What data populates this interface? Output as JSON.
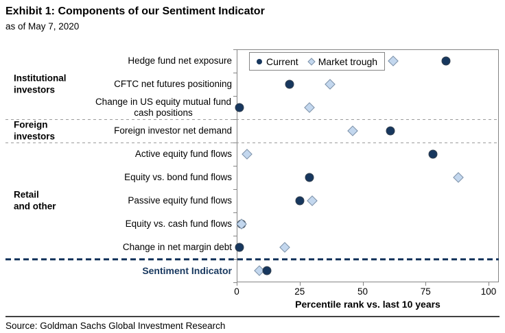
{
  "header": {
    "title": "Exhibit 1: Components of our Sentiment Indicator",
    "date": "as of May 7, 2020"
  },
  "footer": {
    "source": "Source: Goldman Sachs Global Investment Research"
  },
  "chart_data": {
    "type": "scatter",
    "title": "Exhibit 1: Components of our Sentiment Indicator",
    "subtitle": "as of May 7, 2020",
    "xlabel": "Percentile rank vs. last 10 years",
    "xlim": [
      0,
      104
    ],
    "xticks": [
      0,
      25,
      50,
      75,
      100
    ],
    "legend": [
      {
        "label": "Current",
        "marker": "circle"
      },
      {
        "label": "Market trough",
        "marker": "diamond"
      }
    ],
    "groups": [
      {
        "lines": [
          "Institutional",
          "investors"
        ],
        "center_row": 1
      },
      {
        "lines": [
          "Foreign",
          "investors"
        ],
        "center_row": 3
      },
      {
        "lines": [
          "Retail",
          "and other"
        ],
        "center_row": 6
      }
    ],
    "rows": [
      {
        "label": "Hedge fund net exposure",
        "points": [
          {
            "series": "trough",
            "value": 62
          },
          {
            "series": "current",
            "value": 83
          }
        ]
      },
      {
        "label": "CFTC net futures positioning",
        "points": [
          {
            "series": "trough",
            "value": 37
          },
          {
            "series": "current",
            "value": 21
          }
        ]
      },
      {
        "label": "Change in US equity mutual fund cash positions",
        "points": [
          {
            "series": "trough",
            "value": 29
          },
          {
            "series": "current",
            "value": 1
          }
        ]
      },
      {
        "label": "Foreign investor net demand",
        "points": [
          {
            "series": "trough",
            "value": 46
          },
          {
            "series": "current",
            "value": 61
          }
        ]
      },
      {
        "label": "Active equity fund flows",
        "points": [
          {
            "series": "trough",
            "value": 4
          },
          {
            "series": "current",
            "value": 78
          }
        ]
      },
      {
        "label": "Equity vs. bond fund flows",
        "points": [
          {
            "series": "trough",
            "value": 88
          },
          {
            "series": "current",
            "value": 29
          }
        ]
      },
      {
        "label": "Passive equity fund flows",
        "points": [
          {
            "series": "current",
            "value": 25
          },
          {
            "series": "trough",
            "value": 30
          }
        ]
      },
      {
        "label": "Equity vs. cash fund flows",
        "points": [
          {
            "series": "current",
            "value": 2
          },
          {
            "series": "trough",
            "value": 2
          }
        ]
      },
      {
        "label": "Change in net margin debt",
        "points": [
          {
            "series": "trough",
            "value": 19
          },
          {
            "series": "current",
            "value": 1
          }
        ]
      },
      {
        "label": "Sentiment Indicator",
        "emphasis": true,
        "points": [
          {
            "series": "trough",
            "value": 9
          },
          {
            "series": "current",
            "value": 12
          }
        ]
      }
    ],
    "separators": [
      {
        "after_row": 2,
        "style": "minor"
      },
      {
        "after_row": 3,
        "style": "minor"
      },
      {
        "after_row": 8,
        "style": "major"
      }
    ],
    "colors": {
      "current": "#17375E",
      "trough_fill": "#C3D7EE",
      "trough_stroke": "#7C90A6",
      "accent": "#17375E"
    },
    "legend_position": "top-left-inside",
    "grid": false
  }
}
